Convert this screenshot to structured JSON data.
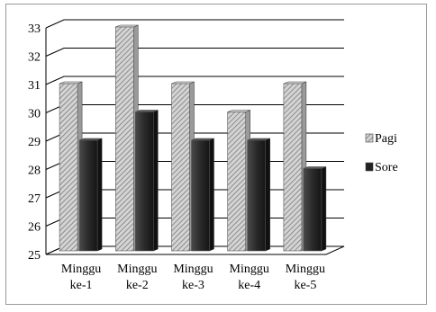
{
  "chart_data": {
    "type": "bar",
    "title": "",
    "xlabel": "",
    "ylabel": "",
    "ylim": [
      25,
      33
    ],
    "yticks": [
      "25",
      "26",
      "27",
      "28",
      "29",
      "30",
      "31",
      "32",
      "33"
    ],
    "grid": true,
    "legend_position": "right",
    "categories": [
      [
        "Minggu",
        "ke-1"
      ],
      [
        "Minggu",
        "ke-2"
      ],
      [
        "Minggu",
        "ke-3"
      ],
      [
        "Minggu",
        "ke-4"
      ],
      [
        "Minggu",
        "ke-5"
      ]
    ],
    "series": [
      {
        "name": "Pagi",
        "values": [
          31,
          33,
          31,
          30,
          31
        ],
        "color": "#b8b8b8",
        "pattern": "diagonal-hatch"
      },
      {
        "name": "Sore",
        "values": [
          29,
          30,
          29,
          29,
          28
        ],
        "color": "#2e2e2e",
        "pattern": "solid"
      }
    ]
  }
}
